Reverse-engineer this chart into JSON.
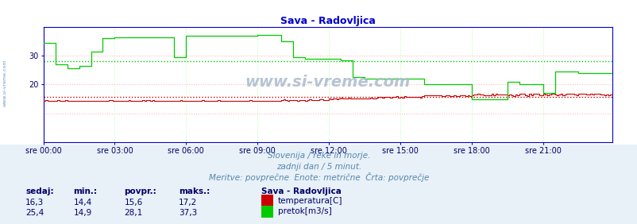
{
  "title": "Sava - Radovljica",
  "title_color": "#0000cc",
  "bg_color": "#ffffff",
  "plot_bg_color": "#ffffff",
  "bottom_bg_color": "#ddeeff",
  "watermark": "www.si-vreme.com",
  "subtitle1": "Slovenija / reke in morje.",
  "subtitle2": "zadnji dan / 5 minut.",
  "subtitle3": "Meritve: povprečne  Enote: metrične  Črta: povprečje",
  "xlim": [
    0,
    287
  ],
  "ylim": [
    0,
    40
  ],
  "yticks": [
    20,
    30
  ],
  "xtick_labels": [
    "sre 00:00",
    "sre 03:00",
    "sre 06:00",
    "sre 09:00",
    "sre 12:00",
    "sre 15:00",
    "sre 18:00",
    "sre 21:00"
  ],
  "xtick_positions": [
    0,
    36,
    72,
    108,
    144,
    180,
    216,
    252
  ],
  "temp_color": "#cc0000",
  "flow_color": "#00cc00",
  "temp_avg": 15.6,
  "flow_avg": 28.1,
  "legend_title": "Sava - Radovljica",
  "legend_temp": "temperatura[C]",
  "legend_flow": "pretok[m3/s]",
  "table_headers": [
    "sedaj:",
    "min.:",
    "povpr.:",
    "maks.:"
  ],
  "table_temp": [
    "16,3",
    "14,4",
    "15,6",
    "17,2"
  ],
  "table_flow": [
    "25,4",
    "14,9",
    "28,1",
    "37,3"
  ],
  "sidebar_text": "www.si-vreme.com"
}
